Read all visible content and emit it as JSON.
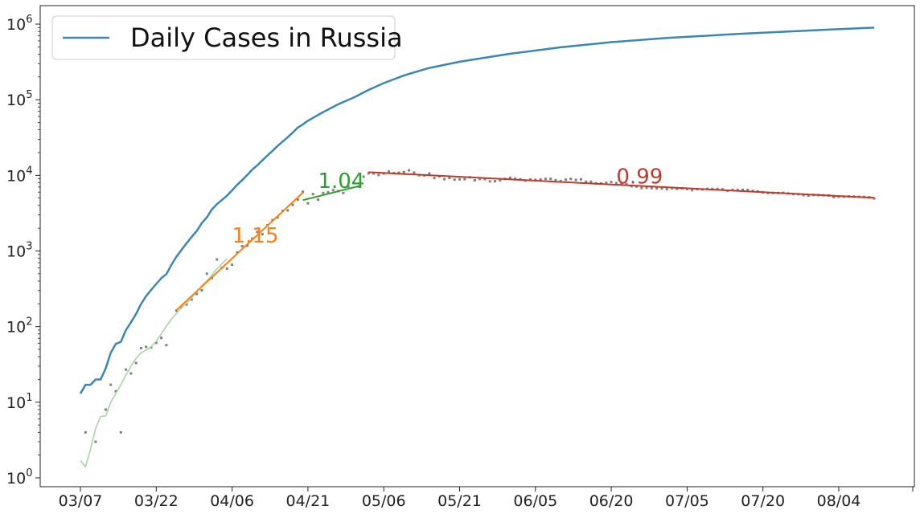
{
  "chart_data": {
    "type": "line",
    "title": "",
    "xlabel": "",
    "ylabel": "",
    "y_scale": "log",
    "ylim": [
      0.7,
      1800000
    ],
    "x_ticks": [
      "03/07",
      "03/22",
      "04/06",
      "04/21",
      "05/06",
      "05/21",
      "06/05",
      "06/20",
      "07/05",
      "07/20",
      "08/04"
    ],
    "y_ticks": [
      {
        "value": 1,
        "label_base": "10",
        "label_exp": "0"
      },
      {
        "value": 10,
        "label_base": "10",
        "label_exp": "1"
      },
      {
        "value": 100,
        "label_base": "10",
        "label_exp": "2"
      },
      {
        "value": 1000,
        "label_base": "10",
        "label_exp": "3"
      },
      {
        "value": 10000,
        "label_base": "10",
        "label_exp": "4"
      },
      {
        "value": 100000,
        "label_base": "10",
        "label_exp": "5"
      },
      {
        "value": 1000000,
        "label_base": "10",
        "label_exp": "6"
      }
    ],
    "legend": {
      "position": "top-left",
      "entries": [
        "Daily Cases in Russia"
      ]
    },
    "colors": {
      "cumulative": "#3a86b4",
      "points": "#7f7f7f",
      "smoothed": "#a8d5a2",
      "fit_orange": "#ff7f0e",
      "fit_green": "#2ca02c",
      "fit_red": "#c0392b"
    },
    "series": [
      {
        "name": "Daily Cases in Russia",
        "kind": "cumulative",
        "points": [
          [
            "03/07",
            13
          ],
          [
            "03/08",
            17
          ],
          [
            "03/09",
            17
          ],
          [
            "03/10",
            20
          ],
          [
            "03/11",
            20
          ],
          [
            "03/12",
            28
          ],
          [
            "03/13",
            45
          ],
          [
            "03/14",
            59
          ],
          [
            "03/15",
            63
          ],
          [
            "03/16",
            90
          ],
          [
            "03/17",
            114
          ],
          [
            "03/18",
            147
          ],
          [
            "03/19",
            199
          ],
          [
            "03/20",
            253
          ],
          [
            "03/21",
            306
          ],
          [
            "03/22",
            367
          ],
          [
            "03/23",
            438
          ],
          [
            "03/24",
            495
          ],
          [
            "03/25",
            658
          ],
          [
            "03/26",
            840
          ],
          [
            "03/27",
            1036
          ],
          [
            "03/28",
            1264
          ],
          [
            "03/29",
            1534
          ],
          [
            "03/30",
            1836
          ],
          [
            "03/31",
            2337
          ],
          [
            "04/01",
            2777
          ],
          [
            "04/02",
            3548
          ],
          [
            "04/03",
            4149
          ],
          [
            "04/04",
            4731
          ],
          [
            "04/05",
            5389
          ],
          [
            "04/06",
            6343
          ],
          [
            "04/07",
            7497
          ],
          [
            "04/08",
            8672
          ],
          [
            "04/09",
            10131
          ],
          [
            "04/10",
            11917
          ],
          [
            "04/11",
            13584
          ],
          [
            "04/12",
            15770
          ],
          [
            "04/13",
            18328
          ],
          [
            "04/14",
            21102
          ],
          [
            "04/15",
            24490
          ],
          [
            "04/16",
            27938
          ],
          [
            "04/17",
            32008
          ],
          [
            "04/18",
            36793
          ],
          [
            "04/19",
            42853
          ],
          [
            "04/20",
            47121
          ],
          [
            "04/21",
            52763
          ],
          [
            "04/24",
            68622
          ],
          [
            "04/27",
            87147
          ],
          [
            "04/30",
            106498
          ],
          [
            "05/03",
            134687
          ],
          [
            "05/06",
            165929
          ],
          [
            "05/10",
            209688
          ],
          [
            "05/15",
            262843
          ],
          [
            "05/21",
            317554
          ],
          [
            "05/31",
            405843
          ],
          [
            "06/10",
            493023
          ],
          [
            "06/20",
            576952
          ],
          [
            "07/01",
            654405
          ],
          [
            "07/15",
            739947
          ],
          [
            "07/30",
            828990
          ],
          [
            "08/11",
            897599
          ]
        ]
      },
      {
        "name": "",
        "kind": "daily_points",
        "points": [
          [
            "03/08",
            4
          ],
          [
            "03/10",
            3
          ],
          [
            "03/12",
            8
          ],
          [
            "03/13",
            17
          ],
          [
            "03/14",
            14
          ],
          [
            "03/15",
            4
          ],
          [
            "03/16",
            27
          ],
          [
            "03/17",
            24
          ],
          [
            "03/18",
            33
          ],
          [
            "03/19",
            52
          ],
          [
            "03/20",
            54
          ],
          [
            "03/21",
            53
          ],
          [
            "03/22",
            61
          ],
          [
            "03/23",
            71
          ],
          [
            "03/24",
            57
          ],
          [
            "03/26",
            163
          ],
          [
            "03/27",
            182
          ],
          [
            "03/28",
            196
          ],
          [
            "03/29",
            228
          ],
          [
            "03/30",
            270
          ],
          [
            "03/31",
            302
          ],
          [
            "04/01",
            501
          ],
          [
            "04/02",
            440
          ],
          [
            "04/03",
            771
          ],
          [
            "04/04",
            601
          ],
          [
            "04/05",
            582
          ],
          [
            "04/06",
            658
          ],
          [
            "04/07",
            954
          ],
          [
            "04/08",
            1154
          ],
          [
            "04/09",
            1175
          ],
          [
            "04/10",
            1459
          ],
          [
            "04/11",
            1786
          ],
          [
            "04/12",
            1667
          ],
          [
            "04/13",
            2186
          ],
          [
            "04/14",
            2558
          ],
          [
            "04/15",
            2774
          ],
          [
            "04/16",
            3388
          ],
          [
            "04/17",
            3448
          ],
          [
            "04/18",
            4070
          ],
          [
            "04/19",
            4785
          ],
          [
            "04/20",
            6060
          ],
          [
            "04/21",
            4268
          ],
          [
            "04/22",
            5642
          ],
          [
            "04/23",
            4774
          ],
          [
            "04/24",
            5849
          ],
          [
            "04/25",
            5966
          ],
          [
            "04/26",
            6361
          ],
          [
            "04/27",
            6198
          ],
          [
            "04/28",
            5841
          ],
          [
            "04/29",
            7099
          ],
          [
            "04/30",
            7933
          ],
          [
            "05/01",
            7099
          ],
          [
            "05/02",
            9623
          ],
          [
            "05/03",
            10633
          ],
          [
            "05/04",
            10581
          ],
          [
            "05/05",
            10102
          ],
          [
            "05/06",
            10559
          ],
          [
            "05/07",
            11231
          ],
          [
            "05/08",
            10699
          ],
          [
            "05/09",
            10817
          ],
          [
            "05/10",
            11012
          ],
          [
            "05/11",
            11656
          ],
          [
            "05/12",
            10899
          ],
          [
            "05/13",
            10028
          ],
          [
            "05/14",
            9974
          ],
          [
            "05/15",
            10598
          ],
          [
            "05/16",
            9200
          ],
          [
            "05/17",
            9709
          ],
          [
            "05/18",
            8926
          ],
          [
            "05/19",
            9263
          ],
          [
            "05/20",
            8764
          ],
          [
            "05/21",
            8849
          ],
          [
            "05/22",
            8894
          ],
          [
            "05/23",
            9434
          ],
          [
            "05/24",
            8599
          ],
          [
            "05/25",
            8946
          ],
          [
            "05/26",
            8915
          ],
          [
            "05/27",
            8338
          ],
          [
            "05/28",
            8371
          ],
          [
            "05/29",
            8572
          ],
          [
            "05/30",
            8952
          ],
          [
            "05/31",
            9268
          ],
          [
            "06/01",
            9035
          ],
          [
            "06/02",
            8863
          ],
          [
            "06/03",
            8536
          ],
          [
            "06/04",
            8831
          ],
          [
            "06/05",
            8726
          ],
          [
            "06/06",
            8855
          ],
          [
            "06/07",
            8984
          ],
          [
            "06/08",
            8985
          ],
          [
            "06/09",
            8595
          ],
          [
            "06/10",
            8404
          ],
          [
            "06/11",
            8779
          ],
          [
            "06/12",
            8987
          ],
          [
            "06/13",
            8706
          ],
          [
            "06/14",
            8835
          ],
          [
            "06/15",
            8246
          ],
          [
            "06/16",
            8248
          ],
          [
            "06/17",
            7843
          ],
          [
            "06/18",
            7790
          ],
          [
            "06/19",
            7972
          ],
          [
            "06/20",
            8175
          ],
          [
            "06/21",
            7889
          ],
          [
            "06/22",
            7728
          ],
          [
            "06/23",
            7600
          ],
          [
            "06/24",
            7176
          ],
          [
            "06/25",
            7113
          ],
          [
            "06/26",
            6800
          ],
          [
            "06/27",
            6852
          ],
          [
            "06/28",
            6791
          ],
          [
            "06/29",
            6719
          ],
          [
            "06/30",
            6693
          ],
          [
            "07/01",
            6556
          ],
          [
            "07/02",
            6760
          ],
          [
            "07/03",
            6632
          ],
          [
            "07/04",
            6736
          ],
          [
            "07/05",
            6611
          ],
          [
            "07/06",
            6368
          ],
          [
            "07/07",
            6562
          ],
          [
            "07/08",
            6509
          ],
          [
            "07/09",
            6635
          ],
          [
            "07/10",
            6611
          ],
          [
            "07/11",
            6615
          ],
          [
            "07/12",
            6537
          ],
          [
            "07/13",
            6248
          ],
          [
            "07/14",
            6422
          ],
          [
            "07/15",
            6428
          ],
          [
            "07/16",
            6422
          ],
          [
            "07/17",
            6406
          ],
          [
            "07/18",
            6234
          ],
          [
            "07/19",
            6109
          ],
          [
            "07/20",
            5940
          ],
          [
            "07/21",
            5842
          ],
          [
            "07/22",
            5862
          ],
          [
            "07/23",
            5848
          ],
          [
            "07/24",
            5871
          ],
          [
            "07/25",
            5765
          ],
          [
            "07/26",
            5635
          ],
          [
            "07/27",
            5635
          ],
          [
            "07/28",
            5475
          ],
          [
            "07/29",
            5395
          ],
          [
            "07/30",
            5509
          ],
          [
            "07/31",
            5482
          ],
          [
            "08/01",
            5462
          ],
          [
            "08/02",
            5427
          ],
          [
            "08/03",
            5159
          ],
          [
            "08/04",
            5204
          ],
          [
            "08/05",
            5241
          ],
          [
            "08/06",
            5267
          ],
          [
            "08/07",
            5241
          ],
          [
            "08/08",
            5212
          ],
          [
            "08/09",
            5189
          ],
          [
            "08/10",
            5118
          ],
          [
            "08/11",
            4945
          ]
        ]
      },
      {
        "name": "",
        "kind": "smoothed",
        "points": [
          [
            "03/07",
            1.7
          ],
          [
            "03/08",
            1.4
          ],
          [
            "03/09",
            2.4
          ],
          [
            "03/10",
            4.5
          ],
          [
            "03/11",
            6.5
          ],
          [
            "03/12",
            6.6
          ],
          [
            "03/13",
            10
          ],
          [
            "03/14",
            13
          ],
          [
            "03/15",
            17
          ],
          [
            "03/16",
            23
          ],
          [
            "03/17",
            30
          ],
          [
            "03/18",
            38
          ],
          [
            "03/19",
            45
          ],
          [
            "03/20",
            49
          ],
          [
            "03/21",
            54
          ],
          [
            "03/22",
            64
          ],
          [
            "03/23",
            80
          ],
          [
            "03/24",
            102
          ],
          [
            "03/25",
            125
          ],
          [
            "03/26",
            150
          ],
          [
            "03/27",
            178
          ],
          [
            "03/28",
            205
          ],
          [
            "03/29",
            240
          ],
          [
            "03/30",
            290
          ],
          [
            "03/31",
            345
          ],
          [
            "04/01",
            400
          ],
          [
            "04/02",
            480
          ],
          [
            "04/03",
            580
          ],
          [
            "04/04",
            680
          ],
          [
            "04/05",
            790
          ]
        ]
      }
    ],
    "fits": [
      {
        "label": "1.15",
        "color_key": "fit_orange",
        "from": [
          "03/26",
          165
        ],
        "to": [
          "04/20",
          5900
        ]
      },
      {
        "label": "1.04",
        "color_key": "fit_green",
        "from": [
          "04/20",
          4700
        ],
        "to": [
          "05/01",
          7200
        ]
      },
      {
        "label": "0.99",
        "color_key": "fit_red",
        "from": [
          "05/03",
          11000
        ],
        "to": [
          "08/11",
          5050
        ]
      }
    ]
  }
}
